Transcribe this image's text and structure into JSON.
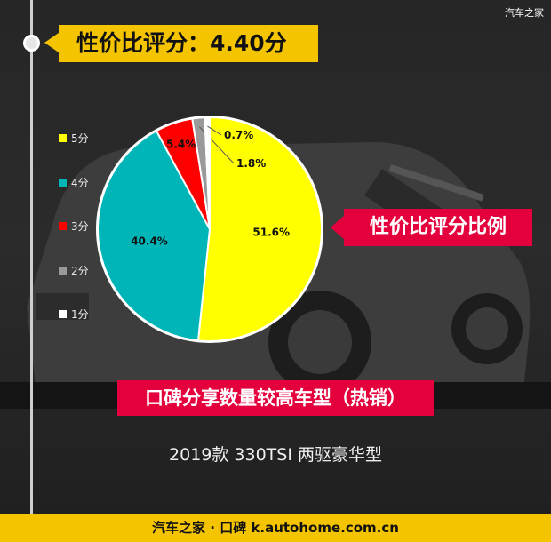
{
  "header": {
    "title": "性价比评分：4.40分"
  },
  "chart_data": {
    "type": "pie",
    "slices": [
      {
        "label": "5分",
        "value": 51.6,
        "data_label": "51.6%",
        "color": "#ffff00"
      },
      {
        "label": "4分",
        "value": 40.4,
        "data_label": "40.4%",
        "color": "#00b5b8"
      },
      {
        "label": "3分",
        "value": 5.4,
        "data_label": "5.4%",
        "color": "#ff0000"
      },
      {
        "label": "2分",
        "value": 1.8,
        "data_label": "1.8%",
        "color": "#9a9a9a"
      },
      {
        "label": "1分",
        "value": 0.7,
        "data_label": "0.7%",
        "color": "#ffffff"
      }
    ],
    "legend_position": "left",
    "title": ""
  },
  "callouts": {
    "right": "性价比评分比例",
    "bottom": "口碑分享数量较高车型（热销）"
  },
  "model": "2019款 330TSI 两驱豪华型",
  "footer": {
    "text": "汽车之家 · 口碑  k.autohome.com.cn",
    "watermark": "汽车之家"
  },
  "colors": {
    "accent_yellow": "#f5c400",
    "accent_red": "#e4003c"
  }
}
